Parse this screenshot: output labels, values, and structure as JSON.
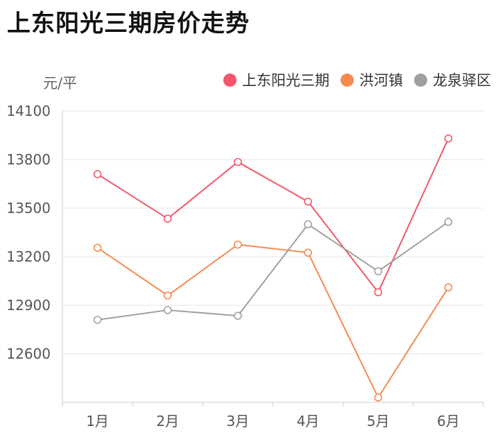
{
  "title": "上东阳光三期房价走势",
  "chart_data": {
    "type": "line",
    "title": "上东阳光三期房价走势",
    "ylabel": "元/平",
    "xlabel": "",
    "categories": [
      "1月",
      "2月",
      "3月",
      "4月",
      "5月",
      "6月"
    ],
    "ylim": [
      12300,
      14100
    ],
    "yticks": [
      "12600",
      "12900",
      "13200",
      "13500",
      "13800",
      "14100"
    ],
    "grid": true,
    "legend_position": "top-right",
    "series": [
      {
        "name": "上东阳光三期",
        "color": "#f2566b",
        "values": [
          13710,
          13435,
          13785,
          13540,
          12980,
          13930
        ]
      },
      {
        "name": "洪河镇",
        "color": "#f5894f",
        "values": [
          13255,
          12960,
          13275,
          13225,
          12330,
          13010
        ]
      },
      {
        "name": "龙泉驿区",
        "color": "#a0a0a0",
        "values": [
          12810,
          12870,
          12835,
          13400,
          13110,
          13415
        ]
      }
    ]
  }
}
